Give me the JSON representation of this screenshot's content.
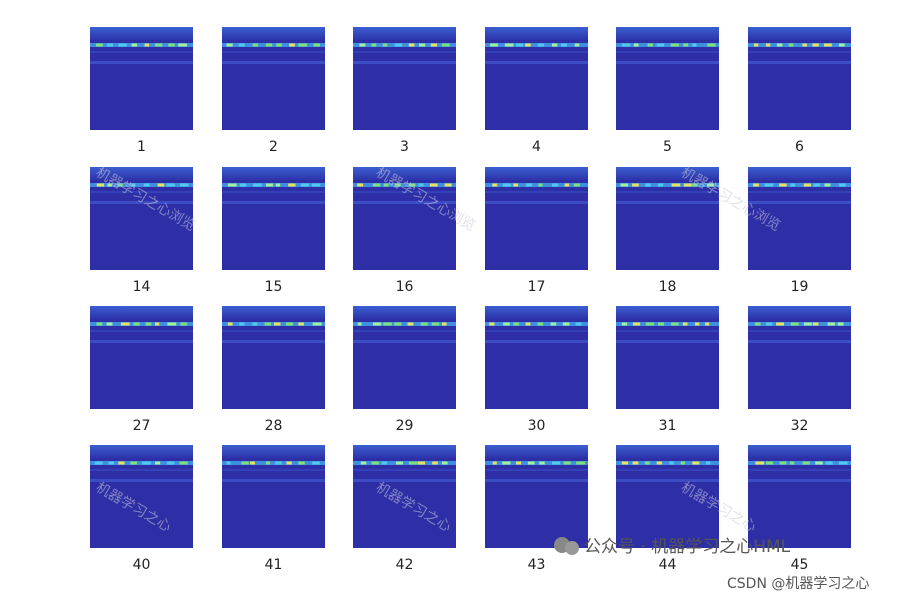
{
  "labels": [
    [
      "1",
      "2",
      "3",
      "4",
      "5",
      "6"
    ],
    [
      "14",
      "15",
      "16",
      "17",
      "18",
      "19"
    ],
    [
      "27",
      "28",
      "29",
      "30",
      "31",
      "32"
    ],
    [
      "40",
      "41",
      "42",
      "43",
      "44",
      "45"
    ]
  ],
  "watermarks": [
    "公众号 · 机器学习之心HML",
    "CSDN @机器学习之心"
  ],
  "diagonal_watermarks": [
    "机器学习之心浏览",
    "机器学习之心浏览",
    "机器学习之心浏览",
    "机器学习之心",
    "机器学习之心",
    "机器学习之心"
  ]
}
